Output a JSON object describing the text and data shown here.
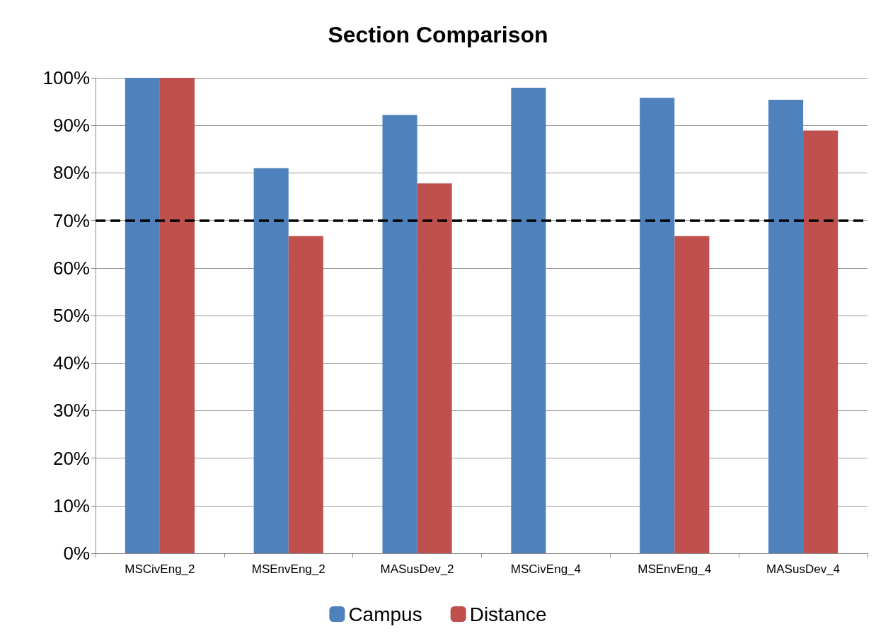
{
  "chart_data": {
    "type": "bar",
    "title": "Section Comparison",
    "categories": [
      "MSCivEng_2",
      "MSEnvEng_2",
      "MASusDev_2",
      "MSCivEng_4",
      "MSEnvEng_4",
      "MASusDev_4"
    ],
    "series": [
      {
        "name": "Campus",
        "color": "#4f81bd",
        "values": [
          100,
          81,
          92.2,
          97.9,
          95.8,
          95.4
        ]
      },
      {
        "name": "Distance",
        "color": "#c0504d",
        "values": [
          100,
          66.7,
          77.8,
          null,
          66.7,
          88.9
        ]
      }
    ],
    "ylim": [
      0,
      100
    ],
    "yticks": [
      {
        "value": 0,
        "label": "0%"
      },
      {
        "value": 10,
        "label": "10%"
      },
      {
        "value": 20,
        "label": "20%"
      },
      {
        "value": 30,
        "label": "30%"
      },
      {
        "value": 40,
        "label": "40%"
      },
      {
        "value": 50,
        "label": "50%"
      },
      {
        "value": 60,
        "label": "60%"
      },
      {
        "value": 70,
        "label": "70%"
      },
      {
        "value": 80,
        "label": "80%"
      },
      {
        "value": 90,
        "label": "90%"
      },
      {
        "value": 100,
        "label": "100%"
      }
    ],
    "ref_lines": [
      {
        "axis": "y",
        "value": 70,
        "color": "#000000",
        "line_style": "dashed"
      }
    ],
    "grid": "y",
    "legend": "bottom"
  }
}
